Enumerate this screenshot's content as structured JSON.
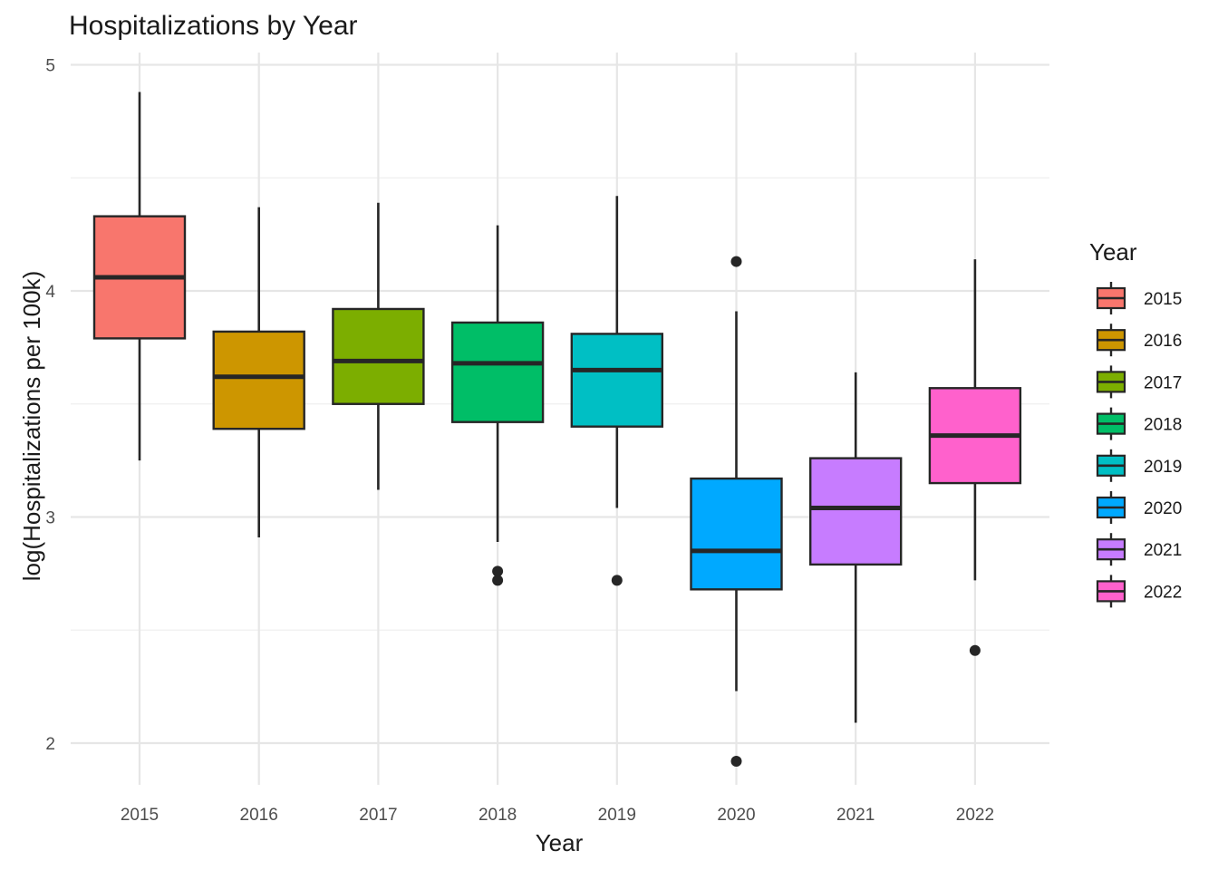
{
  "chart_data": {
    "type": "boxplot",
    "title": "Hospitalizations by Year",
    "xlabel": "Year",
    "ylabel": "log(Hospitalizations per 100k)",
    "ylim": [
      1.8,
      5.05
    ],
    "yticks": [
      2,
      3,
      4,
      5
    ],
    "ytick_labels": [
      "2",
      "3",
      "4",
      "5"
    ],
    "grid": true,
    "legend": {
      "title": "Year",
      "position": "right"
    },
    "categories": [
      "2015",
      "2016",
      "2017",
      "2018",
      "2019",
      "2020",
      "2021",
      "2022"
    ],
    "boxes": [
      {
        "name": "2015",
        "color": "#F8766D",
        "whisker_low": 3.25,
        "q1": 3.79,
        "median": 4.06,
        "q3": 4.33,
        "whisker_high": 4.88,
        "outliers": []
      },
      {
        "name": "2016",
        "color": "#CD9600",
        "whisker_low": 2.91,
        "q1": 3.39,
        "median": 3.62,
        "q3": 3.82,
        "whisker_high": 4.37,
        "outliers": []
      },
      {
        "name": "2017",
        "color": "#7CAE00",
        "whisker_low": 3.12,
        "q1": 3.5,
        "median": 3.69,
        "q3": 3.92,
        "whisker_high": 4.39,
        "outliers": []
      },
      {
        "name": "2018",
        "color": "#00BE67",
        "whisker_low": 2.89,
        "q1": 3.42,
        "median": 3.68,
        "q3": 3.86,
        "whisker_high": 4.29,
        "outliers": [
          2.72,
          2.76
        ]
      },
      {
        "name": "2019",
        "color": "#00BFC4",
        "whisker_low": 3.04,
        "q1": 3.4,
        "median": 3.65,
        "q3": 3.81,
        "whisker_high": 4.42,
        "outliers": [
          2.72
        ]
      },
      {
        "name": "2020",
        "color": "#00A9FF",
        "whisker_low": 2.23,
        "q1": 2.68,
        "median": 2.85,
        "q3": 3.17,
        "whisker_high": 3.91,
        "outliers": [
          1.92,
          4.13
        ]
      },
      {
        "name": "2021",
        "color": "#C77CFF",
        "whisker_low": 2.09,
        "q1": 2.79,
        "median": 3.04,
        "q3": 3.26,
        "whisker_high": 3.64,
        "outliers": []
      },
      {
        "name": "2022",
        "color": "#FF61CC",
        "whisker_low": 2.72,
        "q1": 3.15,
        "median": 3.36,
        "q3": 3.57,
        "whisker_high": 4.14,
        "outliers": [
          2.41
        ]
      }
    ]
  }
}
